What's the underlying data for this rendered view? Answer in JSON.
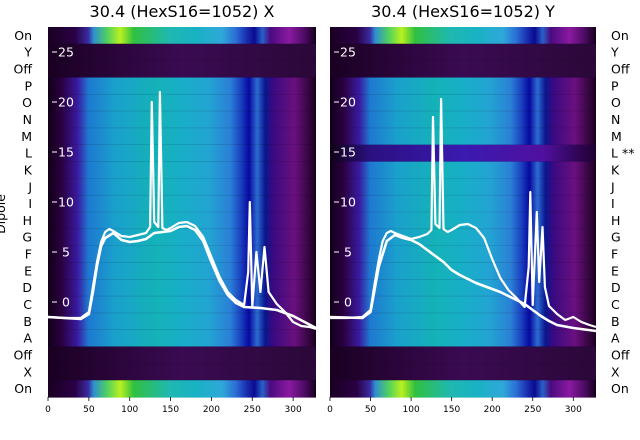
{
  "chart_data": [
    {
      "type": "heatmap",
      "panel": "left",
      "title": "30.4 (HexS16=1052) X",
      "xticks": [
        0,
        50,
        100,
        150,
        200,
        250,
        300
      ],
      "yticks": [
        0,
        5,
        10,
        15,
        20,
        25
      ],
      "xlim": [
        0,
        328
      ],
      "ylim": [
        -9.5,
        27.5
      ],
      "grid": false,
      "ylabel": "Dipole",
      "dipole_labels": [
        "On",
        "Y",
        "Off",
        "P",
        "O",
        "N",
        "M",
        "L",
        "K",
        "J",
        "I",
        "H",
        "G",
        "F",
        "E",
        "D",
        "C",
        "B",
        "A",
        "Off",
        "X",
        "On"
      ],
      "curves": [
        {
          "x": [
            0,
            20,
            40,
            50,
            55,
            60,
            65,
            70,
            75,
            80,
            90,
            100,
            110,
            120,
            125,
            127,
            130,
            135,
            137,
            140,
            145,
            150,
            160,
            170,
            180,
            190,
            200,
            210,
            220,
            230,
            240,
            245,
            247,
            250,
            255,
            260,
            265,
            270,
            280,
            290,
            300,
            310,
            320,
            328
          ],
          "y": [
            -1.5,
            -1.6,
            -1.6,
            -1.0,
            1.5,
            4.0,
            6.0,
            7.0,
            7.3,
            7.1,
            6.6,
            6.5,
            6.7,
            6.9,
            7.5,
            20.0,
            8.0,
            7.5,
            21.0,
            7.4,
            7.2,
            7.4,
            7.9,
            8.0,
            7.6,
            6.5,
            4.5,
            2.5,
            1.0,
            0.2,
            -0.3,
            3.0,
            10.0,
            -0.5,
            5.0,
            1.0,
            5.5,
            1.0,
            -0.2,
            -1.0,
            -2.0,
            -2.4,
            -2.5,
            -2.7
          ]
        },
        {
          "x": [
            0,
            40,
            50,
            55,
            60,
            65,
            70,
            80,
            90,
            100,
            110,
            120,
            130,
            140,
            150,
            160,
            170,
            180,
            190,
            200,
            210,
            220,
            230,
            240,
            260,
            280,
            300,
            328
          ],
          "y": [
            -1.5,
            -1.7,
            -1.2,
            1.0,
            3.6,
            5.6,
            6.4,
            6.9,
            6.2,
            6.0,
            6.1,
            6.3,
            6.9,
            7.0,
            7.1,
            7.5,
            7.6,
            7.2,
            6.1,
            4.0,
            2.1,
            0.7,
            -0.1,
            -0.5,
            -0.6,
            -0.8,
            -1.4,
            -2.6
          ]
        }
      ]
    },
    {
      "type": "heatmap",
      "panel": "right",
      "title": "30.4 (HexS16=1052) Y",
      "xticks": [
        0,
        50,
        100,
        150,
        200,
        250,
        300
      ],
      "yticks": [
        0,
        5,
        10,
        15,
        20,
        25
      ],
      "xlim": [
        0,
        328
      ],
      "ylim": [
        -9.5,
        27.5
      ],
      "grid": false,
      "dipole_labels": [
        "On",
        "Y",
        "Off",
        "P",
        "O",
        "N",
        "M",
        "L **",
        "K",
        "J",
        "I",
        "H",
        "G",
        "F",
        "E",
        "D",
        "C",
        "B",
        "A",
        "Off",
        "X",
        "On"
      ],
      "curves": [
        {
          "x": [
            0,
            20,
            40,
            50,
            55,
            60,
            65,
            70,
            75,
            80,
            90,
            100,
            110,
            120,
            125,
            127,
            130,
            135,
            137,
            140,
            145,
            150,
            160,
            170,
            180,
            190,
            200,
            210,
            220,
            230,
            240,
            245,
            247,
            250,
            255,
            258,
            262,
            265,
            270,
            280,
            290,
            300,
            310,
            320,
            328
          ],
          "y": [
            -1.6,
            -1.6,
            -1.5,
            -0.8,
            1.8,
            4.2,
            6.1,
            6.9,
            7.1,
            6.9,
            6.6,
            6.3,
            6.5,
            6.8,
            7.2,
            18.5,
            7.8,
            7.4,
            20.3,
            7.3,
            7.0,
            7.2,
            7.7,
            7.8,
            7.4,
            6.4,
            4.3,
            2.4,
            1.2,
            0.4,
            -0.5,
            3.5,
            11.0,
            -0.3,
            9.0,
            2.0,
            7.5,
            1.5,
            -0.4,
            -1.2,
            -1.8,
            -1.5,
            -2.0,
            -2.3,
            -2.5
          ]
        },
        {
          "x": [
            0,
            40,
            50,
            60,
            70,
            80,
            90,
            100,
            110,
            120,
            130,
            140,
            150,
            160,
            170,
            180,
            190,
            200,
            210,
            220,
            230,
            240,
            250,
            260,
            270,
            280,
            300,
            328
          ],
          "y": [
            -1.5,
            -1.6,
            -1.0,
            3.5,
            6.1,
            6.7,
            6.4,
            6.2,
            5.8,
            5.2,
            4.6,
            4.0,
            3.2,
            2.7,
            2.3,
            1.9,
            1.6,
            1.3,
            1.0,
            0.6,
            0.2,
            -0.2,
            -0.8,
            -1.4,
            -1.9,
            -2.3,
            -2.6,
            -2.9
          ]
        }
      ]
    }
  ]
}
